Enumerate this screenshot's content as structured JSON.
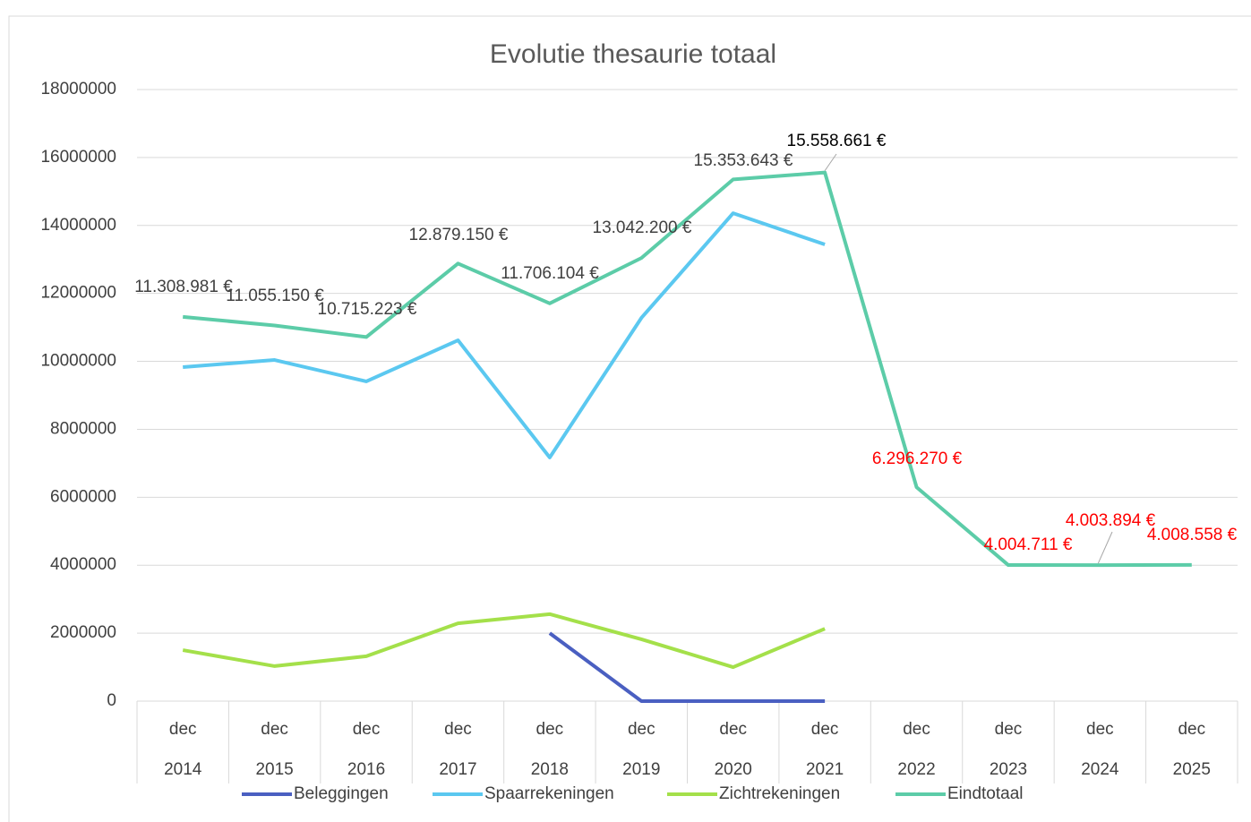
{
  "chart_data": {
    "type": "line",
    "title": "Evolutie thesaurie totaal",
    "categories": [
      {
        "month": "dec",
        "year": "2014"
      },
      {
        "month": "dec",
        "year": "2015"
      },
      {
        "month": "dec",
        "year": "2016"
      },
      {
        "month": "dec",
        "year": "2017"
      },
      {
        "month": "dec",
        "year": "2018"
      },
      {
        "month": "dec",
        "year": "2019"
      },
      {
        "month": "dec",
        "year": "2020"
      },
      {
        "month": "dec",
        "year": "2021"
      },
      {
        "month": "dec",
        "year": "2022"
      },
      {
        "month": "dec",
        "year": "2023"
      },
      {
        "month": "dec",
        "year": "2024"
      },
      {
        "month": "dec",
        "year": "2025"
      }
    ],
    "series": [
      {
        "name": "Beleggingen",
        "color": "#4a5fc1",
        "values": [
          null,
          null,
          null,
          null,
          2000000,
          0,
          0,
          0,
          null,
          null,
          null,
          null
        ]
      },
      {
        "name": "Spaarrekeningen",
        "color": "#5bc8f0",
        "values": [
          9830000,
          10040000,
          9410000,
          10620000,
          7170000,
          11280000,
          14360000,
          13440000,
          null,
          null,
          null,
          null
        ]
      },
      {
        "name": "Zichtrekeningen",
        "color": "#a4e04a",
        "values": [
          1500000,
          1030000,
          1320000,
          2290000,
          2560000,
          1820000,
          1000000,
          2130000,
          null,
          null,
          null,
          null
        ]
      },
      {
        "name": "Eindtotaal",
        "color": "#5ccca8",
        "values": [
          11308981,
          11055150,
          10715223,
          12879150,
          11706104,
          13042200,
          15353643,
          15558661,
          6296270,
          4004711,
          4003894,
          4008558
        ],
        "value_labels": [
          "11.308.981 €",
          "11.055.150 €",
          "10.715.223 €",
          "12.879.150 €",
          "11.706.104 €",
          "13.042.200 €",
          "15.353.643 €",
          "15.558.661 €",
          "6.296.270 €",
          "4.004.711 €",
          "4.003.894 €",
          "4.008.558 €"
        ],
        "value_label_colors": [
          "#404040",
          "#404040",
          "#404040",
          "#404040",
          "#404040",
          "#404040",
          "#404040",
          "#000000",
          "#ff0000",
          "#ff0000",
          "#ff0000",
          "#ff0000"
        ]
      }
    ],
    "ylim": [
      0,
      18000000
    ],
    "yticks": [
      0,
      2000000,
      4000000,
      6000000,
      8000000,
      10000000,
      12000000,
      14000000,
      16000000,
      18000000
    ],
    "grid": true,
    "legend": "bottom"
  }
}
